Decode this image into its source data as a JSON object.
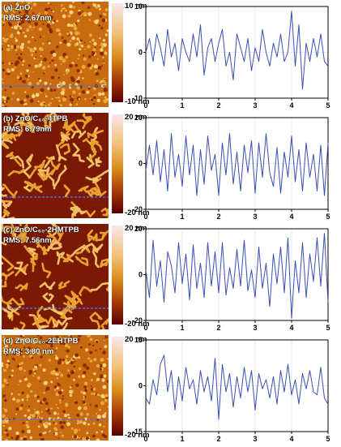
{
  "panels": [
    {
      "label": "(a) ZnO",
      "rms": "RMS: 2.67nm",
      "cbar_top": "10 nm",
      "cbar_bottom": "-10 nm",
      "grain": "fine"
    },
    {
      "label": "(b) ZnO/C₆₀-4TPB",
      "rms": "RMS: 6.79nm",
      "cbar_top": "20 nm",
      "cbar_bottom": "-20 nm",
      "grain": "worm"
    },
    {
      "label": "(c) ZnO/C₆₀-2HMTPB",
      "rms": "RMS: 7.56nm",
      "cbar_top": "20 nm",
      "cbar_bottom": "-20 nm",
      "grain": "worm"
    },
    {
      "label": "(d) ZnO/C₆₀-2EHTPB",
      "rms": "RMS: 3.80 nm",
      "cbar_top": "20 nm",
      "cbar_bottom": "-20 nm",
      "grain": "fine"
    }
  ],
  "chart_data": [
    {
      "type": "line",
      "xlim": [
        0,
        5
      ],
      "ylim": [
        -10,
        10
      ],
      "x_ticks": [
        0,
        1,
        2,
        3,
        4,
        5
      ],
      "y_ticks": [
        -10,
        0,
        10
      ],
      "line_color": "#3a4fb5",
      "x": [
        0,
        0.1,
        0.2,
        0.3,
        0.4,
        0.5,
        0.6,
        0.7,
        0.8,
        0.9,
        1,
        1.1,
        1.2,
        1.3,
        1.4,
        1.5,
        1.6,
        1.7,
        1.8,
        1.9,
        2,
        2.1,
        2.2,
        2.3,
        2.4,
        2.5,
        2.6,
        2.7,
        2.8,
        2.9,
        3,
        3.1,
        3.2,
        3.3,
        3.4,
        3.5,
        3.6,
        3.7,
        3.8,
        3.9,
        4,
        4.1,
        4.2,
        4.3,
        4.4,
        4.5,
        4.6,
        4.7,
        4.8,
        4.9,
        5
      ],
      "y": [
        0,
        3,
        -2,
        4,
        1,
        -3,
        5,
        -1,
        2,
        -4,
        3,
        0,
        -2,
        4,
        -1,
        6,
        -5,
        1,
        3,
        -2,
        2,
        5,
        -3,
        0,
        -6,
        4,
        1,
        -2,
        3,
        -4,
        1,
        -2,
        5,
        0,
        -3,
        2,
        -1,
        4,
        -2,
        0,
        9,
        -3,
        6,
        -8,
        2,
        -2,
        3,
        -1,
        4,
        -2,
        -3
      ]
    },
    {
      "type": "line",
      "xlim": [
        0,
        5
      ],
      "ylim": [
        -20,
        20
      ],
      "x_ticks": [
        0,
        1,
        2,
        3,
        4,
        5
      ],
      "y_ticks": [
        -20,
        0,
        20
      ],
      "line_color": "#3a4fb5",
      "x": [
        0,
        0.1,
        0.2,
        0.3,
        0.4,
        0.5,
        0.6,
        0.7,
        0.8,
        0.9,
        1,
        1.1,
        1.2,
        1.3,
        1.4,
        1.5,
        1.6,
        1.7,
        1.8,
        1.9,
        2,
        2.1,
        2.2,
        2.3,
        2.4,
        2.5,
        2.6,
        2.7,
        2.8,
        2.9,
        3,
        3.1,
        3.2,
        3.3,
        3.4,
        3.5,
        3.6,
        3.7,
        3.8,
        3.9,
        4,
        4.1,
        4.2,
        4.3,
        4.4,
        4.5,
        4.6,
        4.7,
        4.8,
        4.9,
        5
      ],
      "y": [
        -3,
        8,
        -5,
        10,
        -8,
        6,
        -12,
        13,
        -6,
        4,
        -10,
        12,
        -5,
        8,
        -14,
        6,
        -9,
        12,
        -3,
        4,
        -14,
        9,
        -5,
        13,
        -9,
        5,
        -12,
        8,
        -4,
        10,
        -13,
        9,
        -6,
        13,
        -4,
        -10,
        7,
        -13,
        5,
        -6,
        12,
        -8,
        6,
        -12,
        9,
        -6,
        4,
        -12,
        8,
        -14,
        9
      ]
    },
    {
      "type": "line",
      "xlim": [
        0,
        5
      ],
      "ylim": [
        -20,
        20
      ],
      "x_ticks": [
        0,
        1,
        2,
        3,
        4,
        5
      ],
      "y_ticks": [
        -20,
        0,
        20
      ],
      "line_color": "#3a4fb5",
      "x": [
        0,
        0.1,
        0.2,
        0.3,
        0.4,
        0.5,
        0.6,
        0.7,
        0.8,
        0.9,
        1,
        1.1,
        1.2,
        1.3,
        1.4,
        1.5,
        1.6,
        1.7,
        1.8,
        1.9,
        2,
        2.1,
        2.2,
        2.3,
        2.4,
        2.5,
        2.6,
        2.7,
        2.8,
        2.9,
        3,
        3.1,
        3.2,
        3.3,
        3.4,
        3.5,
        3.6,
        3.7,
        3.8,
        3.9,
        4,
        4.1,
        4.2,
        4.3,
        4.4,
        4.5,
        4.6,
        4.7,
        4.8,
        4.9,
        5
      ],
      "y": [
        2,
        -10,
        15,
        -5,
        6,
        -12,
        10,
        4,
        -8,
        14,
        -4,
        9,
        -11,
        13,
        -6,
        5,
        -10,
        14,
        -5,
        10,
        -8,
        14,
        -9,
        3,
        -6,
        11,
        -5,
        15,
        -7,
        2,
        -10,
        12,
        -6,
        5,
        -14,
        9,
        -4,
        12,
        -8,
        16,
        -19,
        6,
        -8,
        14,
        -10,
        9,
        -3,
        16,
        -5,
        18,
        -12
      ]
    },
    {
      "type": "line",
      "xlim": [
        0,
        5
      ],
      "ylim": [
        -15,
        15
      ],
      "x_ticks": [
        0,
        1,
        2,
        3,
        4,
        5
      ],
      "y_ticks": [
        -15,
        0,
        15
      ],
      "line_color": "#3a4fb5",
      "x": [
        0,
        0.1,
        0.2,
        0.3,
        0.4,
        0.5,
        0.6,
        0.7,
        0.8,
        0.9,
        1,
        1.1,
        1.2,
        1.3,
        1.4,
        1.5,
        1.6,
        1.7,
        1.8,
        1.9,
        2,
        2.1,
        2.2,
        2.3,
        2.4,
        2.5,
        2.6,
        2.7,
        2.8,
        2.9,
        3,
        3.1,
        3.2,
        3.3,
        3.4,
        3.5,
        3.6,
        3.7,
        3.8,
        3.9,
        4,
        4.1,
        4.2,
        4.3,
        4.4,
        4.5,
        4.6,
        4.7,
        4.8,
        4.9,
        5
      ],
      "y": [
        -4,
        -6,
        2,
        -3,
        7,
        10,
        -2,
        5,
        -8,
        3,
        -5,
        6,
        -1,
        2,
        -6,
        5,
        -2,
        3,
        -5,
        9,
        -11,
        7,
        -2,
        4,
        -7,
        3,
        -4,
        6,
        -2,
        5,
        -8,
        4,
        -1,
        2,
        -4,
        3,
        -6,
        5,
        -2,
        7,
        -3,
        2,
        -6,
        4,
        -1,
        5,
        -2,
        -3,
        6,
        -4,
        -6
      ]
    }
  ]
}
